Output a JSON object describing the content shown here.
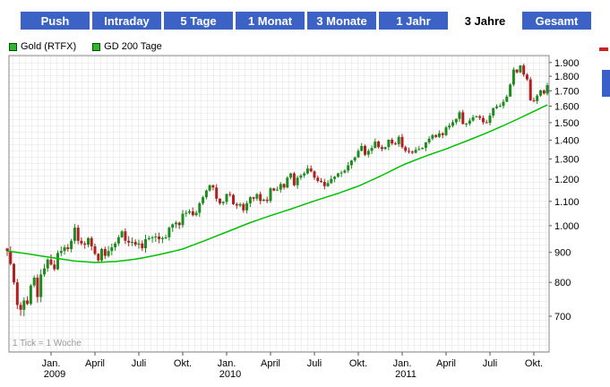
{
  "tabs": {
    "items": [
      {
        "label": "Push",
        "selected": false
      },
      {
        "label": "Intraday",
        "selected": false
      },
      {
        "label": "5 Tage",
        "selected": false
      },
      {
        "label": "1 Monat",
        "selected": false
      },
      {
        "label": "3 Monate",
        "selected": false
      },
      {
        "label": "1 Jahr",
        "selected": false
      },
      {
        "label": "3 Jahre",
        "selected": true
      },
      {
        "label": "Gesamt",
        "selected": false
      }
    ]
  },
  "legend": {
    "items": [
      {
        "label": "Gold (RTFX)",
        "swatch_color": "#2eb82e"
      },
      {
        "label": "GD 200 Tage",
        "swatch_color": "#2eb82e"
      }
    ]
  },
  "chart_data": {
    "type": "candlestick",
    "title": "",
    "xlabel": "",
    "ylabel": "",
    "note": "1 Tick = 1 Woche",
    "interval": "weekly",
    "period_shown": "3 Jahre (Okt. 2008 - Okt. 2011)",
    "y_axis": {
      "scale": "log",
      "side": "right",
      "top_value": 1953,
      "bottom_value": 608,
      "ticks": [
        {
          "value": 1900,
          "label": "1.900"
        },
        {
          "value": 1800,
          "label": "1.800"
        },
        {
          "value": 1700,
          "label": "1.700"
        },
        {
          "value": 1600,
          "label": "1.600"
        },
        {
          "value": 1500,
          "label": "1.500"
        },
        {
          "value": 1400,
          "label": "1.400"
        },
        {
          "value": 1300,
          "label": "1.300"
        },
        {
          "value": 1200,
          "label": "1.200"
        },
        {
          "value": 1100,
          "label": "1.100"
        },
        {
          "value": 1000,
          "label": "1.000"
        },
        {
          "value": 900,
          "label": "900"
        },
        {
          "value": 800,
          "label": "800"
        },
        {
          "value": 700,
          "label": "700"
        }
      ]
    },
    "x_axis": {
      "ticks": [
        {
          "week": 13,
          "label": "Jan.",
          "sub": "2009"
        },
        {
          "week": 26,
          "label": "April"
        },
        {
          "week": 39,
          "label": "Juli"
        },
        {
          "week": 52,
          "label": "Okt."
        },
        {
          "week": 65,
          "label": "Jan.",
          "sub": "2010"
        },
        {
          "week": 78,
          "label": "April"
        },
        {
          "week": 91,
          "label": "Juli"
        },
        {
          "week": 104,
          "label": "Okt."
        },
        {
          "week": 117,
          "label": "Jan.",
          "sub": "2011"
        },
        {
          "week": 130,
          "label": "April"
        },
        {
          "week": 143,
          "label": "Juli"
        },
        {
          "week": 156,
          "label": "Okt."
        }
      ]
    },
    "colors": {
      "up": "#1f8a1f",
      "down": "#b02020",
      "ma": "#00c000",
      "grid": "#e2e2e2",
      "frame": "#8a8a8a",
      "note_text": "#999999"
    },
    "series": [
      {
        "name": "Gold (RTFX)",
        "type": "candlestick",
        "start": "Okt. 2008",
        "closes": [
          905,
          860,
          800,
          732,
          718,
          745,
          735,
          790,
          815,
          755,
          825,
          845,
          875,
          858,
          842,
          898,
          905,
          918,
          912,
          942,
          992,
          942,
          932,
          928,
          952,
          922,
          895,
          872,
          912,
          888,
          905,
          918,
          932,
          955,
          978,
          942,
          935,
          938,
          928,
          932,
          915,
          948,
          952,
          955,
          958,
          948,
          952,
          955,
          992,
          1005,
          1012,
          1002,
          1048,
          1052,
          1058,
          1042,
          1052,
          1092,
          1118,
          1148,
          1172,
          1162,
          1112,
          1092,
          1098,
          1132,
          1128,
          1088,
          1082,
          1088,
          1062,
          1092,
          1118,
          1112,
          1132,
          1102,
          1108,
          1102,
          1158,
          1148,
          1152,
          1178,
          1162,
          1208,
          1228,
          1172,
          1208,
          1218,
          1228,
          1252,
          1238,
          1208,
          1192,
          1188,
          1168,
          1182,
          1202,
          1212,
          1228,
          1232,
          1242,
          1268,
          1292,
          1308,
          1342,
          1368,
          1322,
          1342,
          1358,
          1392,
          1362,
          1352,
          1362,
          1402,
          1382,
          1378,
          1418,
          1362,
          1342,
          1338,
          1332,
          1348,
          1352,
          1358,
          1388,
          1408,
          1428,
          1418,
          1438,
          1428,
          1472,
          1482,
          1502,
          1522,
          1562,
          1492,
          1494,
          1512,
          1532,
          1538,
          1528,
          1502,
          1498,
          1542,
          1588,
          1598,
          1602,
          1628,
          1662,
          1742,
          1848,
          1828,
          1878,
          1812,
          1778,
          1638,
          1632,
          1668,
          1702,
          1682,
          1738
        ]
      },
      {
        "name": "GD 200 Tage",
        "type": "line",
        "anchors": [
          [
            0,
            905
          ],
          [
            6,
            895
          ],
          [
            13,
            882
          ],
          [
            20,
            870
          ],
          [
            26,
            865
          ],
          [
            32,
            868
          ],
          [
            39,
            878
          ],
          [
            45,
            892
          ],
          [
            52,
            912
          ],
          [
            58,
            940
          ],
          [
            65,
            975
          ],
          [
            72,
            1012
          ],
          [
            78,
            1040
          ],
          [
            85,
            1072
          ],
          [
            91,
            1102
          ],
          [
            98,
            1135
          ],
          [
            104,
            1168
          ],
          [
            111,
            1218
          ],
          [
            117,
            1268
          ],
          [
            124,
            1315
          ],
          [
            130,
            1352
          ],
          [
            137,
            1402
          ],
          [
            143,
            1448
          ],
          [
            149,
            1500
          ],
          [
            154,
            1548
          ],
          [
            158,
            1588
          ],
          [
            160,
            1608
          ]
        ]
      }
    ]
  },
  "tab_colors": {
    "bg": "#3b62c4",
    "text": "#ffffff",
    "selected_bg": "#ffffff",
    "selected_text": "#000000"
  },
  "artifacts": {
    "red_mark_color": "#cc2222",
    "blue_mark_color": "#3a5fc8"
  }
}
